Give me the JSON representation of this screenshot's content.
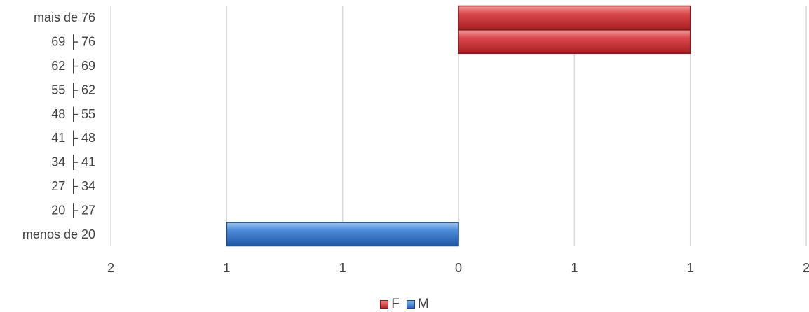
{
  "chart_data": {
    "type": "bar",
    "orientation": "horizontal",
    "categories": [
      "menos de 20",
      "20 ├ 27",
      "27 ├ 34",
      "34 ├ 41",
      "41 ├ 48",
      "48 ├ 55",
      "55 ├ 62",
      "62 ├ 69",
      "69 ├ 76",
      "mais de 76"
    ],
    "series": [
      {
        "name": "F",
        "color": "#c0282a",
        "values": [
          0,
          0,
          0,
          0,
          0,
          0,
          0,
          0,
          1,
          1
        ]
      },
      {
        "name": "M",
        "color": "#2a6bc0",
        "values": [
          -1,
          0,
          0,
          0,
          0,
          0,
          0,
          0,
          0,
          0
        ]
      }
    ],
    "xlim": [
      -1,
      1
    ],
    "x_tick_values": [
      -1,
      -0.5,
      0,
      0.5,
      1
    ],
    "x_tick_labels": [
      "1",
      "1",
      "0",
      "1",
      "1"
    ],
    "x_outer_labels": [
      "2",
      "2"
    ],
    "grid": true,
    "legend_position": "bottom",
    "title": "",
    "xlabel": "",
    "ylabel": ""
  },
  "legend": {
    "items": [
      {
        "label": "F",
        "color": "#c0282a"
      },
      {
        "label": "M",
        "color": "#2a6bc0"
      }
    ]
  }
}
